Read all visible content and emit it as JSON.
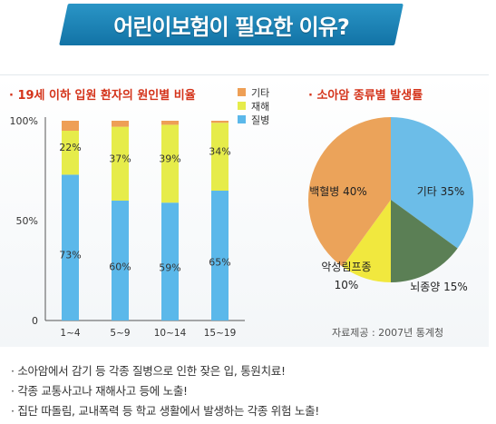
{
  "banner": {
    "title": "어린이보험이 필요한 이유?"
  },
  "bar_chart": {
    "title": "· 19세 이하 입원 환자의 원인별 비율"
  },
  "pie_chart": {
    "title": "· 소아암 종류별 발생률"
  },
  "source_note": "자료제공 : 2007년 통계청",
  "bullets": [
    "· 소아암에서 감기 등 각종 질병으로 인한 잦은 입, 통원치료!",
    "· 각종 교통사고나 재해사고 등에 노출!",
    "· 집단 따돌림, 교내폭력 등 학교 생활에서 발생하는 각종 위험 노출!"
  ],
  "colors": {
    "banner": "#1a82b8",
    "title_red": "#d4331a",
    "disease": "#5bb8ea",
    "accident": "#e6ec4a",
    "other": "#ee9f56",
    "leukemia": "#eba35a",
    "brain_tumor": "#5b7f55",
    "lymphoma": "#f1e83e",
    "pie_other": "#6cbde8"
  },
  "chart_data": [
    {
      "type": "bar",
      "stacked": true,
      "title": "· 19세 이하 입원 환자의 원인별 비율",
      "categories": [
        "1~4",
        "5~9",
        "10~14",
        "15~19"
      ],
      "series": [
        {
          "name": "질병",
          "values": [
            73,
            60,
            59,
            65
          ],
          "labels": [
            "73%",
            "60%",
            "59%",
            "65%"
          ],
          "color": "#5bb8ea"
        },
        {
          "name": "재해",
          "values": [
            22,
            37,
            39,
            34
          ],
          "labels": [
            "22%",
            "37%",
            "39%",
            "34%"
          ],
          "color": "#e6ec4a"
        },
        {
          "name": "기타",
          "values": [
            5,
            3,
            2,
            1
          ],
          "color": "#ee9f56"
        }
      ],
      "yticks": [
        "0",
        "50%",
        "100%"
      ],
      "ylim": [
        0,
        100
      ],
      "legend": "top-right",
      "grid": false
    },
    {
      "type": "pie",
      "title": "· 소아암 종류별 발생률",
      "slices": [
        {
          "name": "기타",
          "label": "기타 35%",
          "value": 35,
          "color": "#6cbde8"
        },
        {
          "name": "뇌종양",
          "label": "뇌종양 15%",
          "value": 15,
          "color": "#5b7f55"
        },
        {
          "name": "악성림프종",
          "label_lines": [
            "악성림프종",
            "10%"
          ],
          "value": 10,
          "color": "#f1e83e"
        },
        {
          "name": "백혈병",
          "label": "백혈병 40%",
          "value": 40,
          "color": "#eba35a"
        }
      ]
    }
  ]
}
